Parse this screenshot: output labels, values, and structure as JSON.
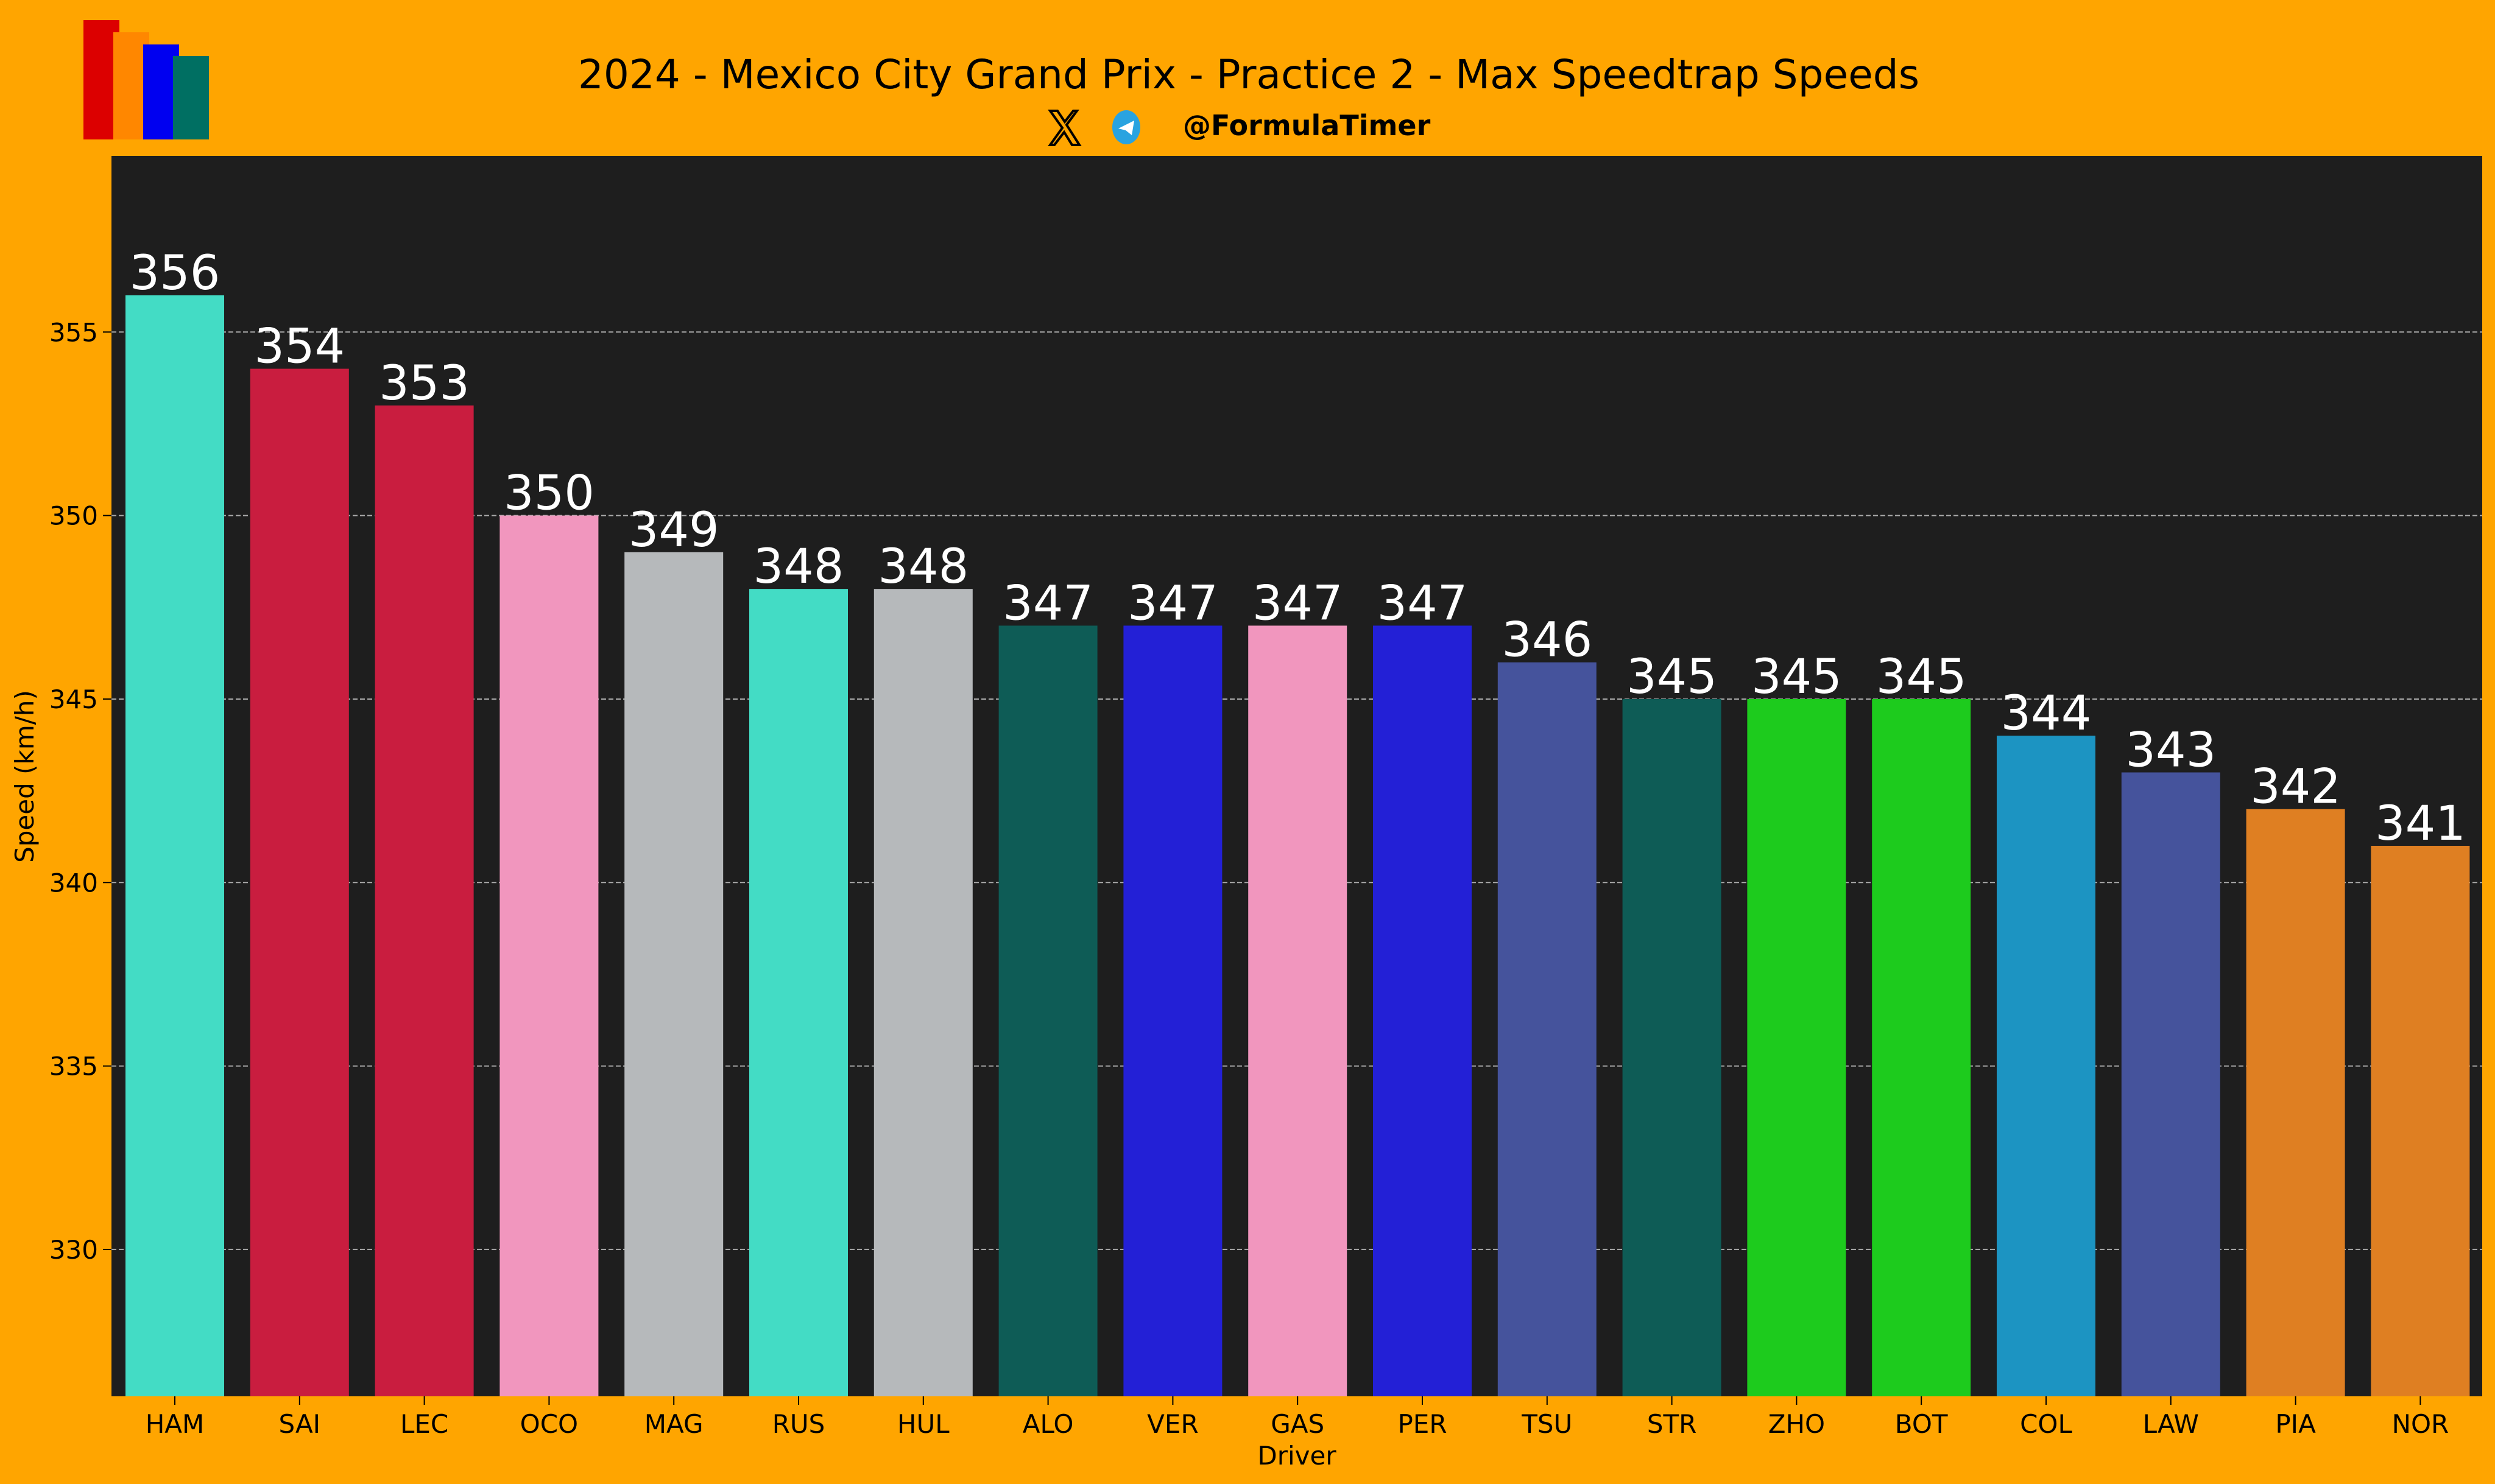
{
  "header": {
    "title": "2024 - Mexico City Grand Prix - Practice 2 - Max Speedtrap Speeds",
    "handle": "@FormulaTimer",
    "icons": [
      "x-logo-icon",
      "telegram-icon"
    ],
    "logo_colors": [
      "#DC0000",
      "#FF8700",
      "#0000F0",
      "#006F62"
    ]
  },
  "colors": {
    "background": "#FFA500",
    "plot_background": "#1E1E1E",
    "grid": "#AAAAAA",
    "label": "#FFFFFF"
  },
  "chart_data": {
    "type": "bar",
    "title": "2024 - Mexico City Grand Prix - Practice 2 - Max Speedtrap Speeds",
    "xlabel": "Driver",
    "ylabel": "Speed (km/h)",
    "ylim": [
      326,
      359.8
    ],
    "yticks": [
      330,
      335,
      340,
      345,
      350,
      355
    ],
    "grid": "y-dashed",
    "categories": [
      "HAM",
      "SAI",
      "LEC",
      "OCO",
      "MAG",
      "RUS",
      "HUL",
      "ALO",
      "VER",
      "GAS",
      "PER",
      "TSU",
      "STR",
      "ZHO",
      "BOT",
      "COL",
      "LAW",
      "PIA",
      "NOR"
    ],
    "values": [
      356,
      354,
      353,
      350,
      349,
      348,
      348,
      347,
      347,
      347,
      347,
      346,
      345,
      345,
      345,
      344,
      343,
      342,
      341
    ],
    "bar_colors": [
      "#43DCC5",
      "#C91D3F",
      "#C91D3F",
      "#F196BE",
      "#B6B9BB",
      "#43DCC5",
      "#B6B9BB",
      "#0E5C56",
      "#2320D6",
      "#F196BE",
      "#2320D6",
      "#45539C",
      "#0E5C56",
      "#1DCB1D",
      "#1DCB1D",
      "#1C94C2",
      "#45539C",
      "#DF7F22",
      "#DF7F22"
    ]
  }
}
